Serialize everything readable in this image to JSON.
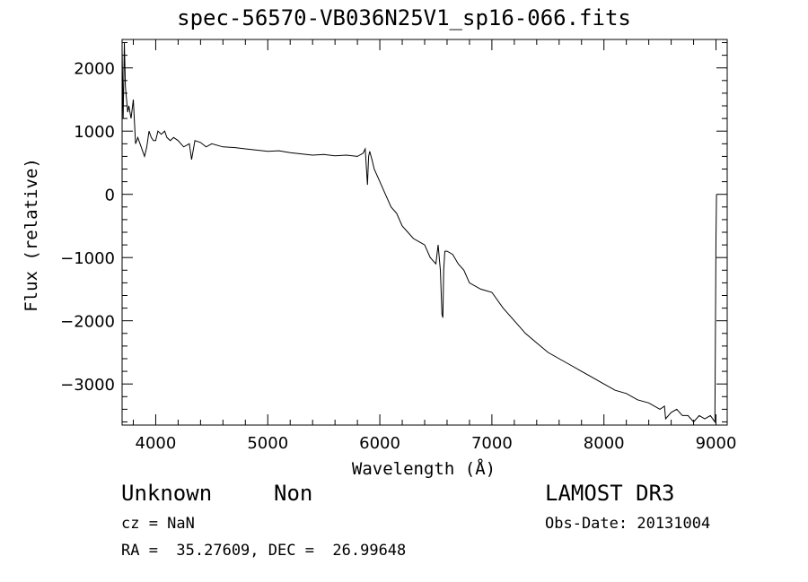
{
  "chart_data": {
    "type": "line",
    "title": "spec-56570-VB036N25V1_sp16-066.fits",
    "xlabel": "Wavelength (Å)",
    "ylabel": "Flux (relative)",
    "xlim": [
      3700,
      9100
    ],
    "ylim": [
      -3650,
      2450
    ],
    "xticks": [
      4000,
      5000,
      6000,
      7000,
      8000,
      9000
    ],
    "yticks": [
      -3000,
      -2000,
      -1000,
      0,
      1000,
      2000
    ],
    "x_minor_step": 200,
    "y_minor_step": 200,
    "grid": false,
    "line_color": "#000000",
    "series": [
      {
        "x": [
          3700,
          3710,
          3720,
          3730,
          3740,
          3750,
          3760,
          3780,
          3800,
          3820,
          3840,
          3860,
          3880,
          3900,
          3920,
          3940,
          3960,
          3980,
          4000,
          4020,
          4050,
          4080,
          4100,
          4130,
          4160,
          4200,
          4250,
          4300,
          4320,
          4350,
          4400,
          4450,
          4500,
          4600,
          4700,
          4800,
          4900,
          5000,
          5100,
          5200,
          5300,
          5400,
          5500,
          5600,
          5700,
          5800,
          5850,
          5870,
          5890,
          5900,
          5910,
          5930,
          5950,
          6000,
          6050,
          6100,
          6150,
          6200,
          6250,
          6300,
          6350,
          6400,
          6450,
          6500,
          6520,
          6540,
          6555,
          6563,
          6570,
          6580,
          6600,
          6650,
          6700,
          6750,
          6800,
          6900,
          7000,
          7100,
          7200,
          7300,
          7400,
          7500,
          7600,
          7700,
          7800,
          7900,
          8000,
          8100,
          8200,
          8300,
          8400,
          8500,
          8540,
          8550,
          8600,
          8650,
          8700,
          8750,
          8800,
          8850,
          8900,
          8950,
          8990,
          9000,
          9005
        ],
        "y": [
          2300,
          1200,
          2400,
          1700,
          1500,
          1300,
          1400,
          1200,
          1500,
          800,
          900,
          800,
          700,
          600,
          750,
          1000,
          900,
          850,
          850,
          1000,
          950,
          1000,
          900,
          850,
          900,
          850,
          750,
          800,
          550,
          850,
          820,
          750,
          800,
          750,
          740,
          720,
          700,
          680,
          690,
          660,
          640,
          620,
          630,
          610,
          620,
          600,
          650,
          720,
          150,
          600,
          680,
          550,
          400,
          200,
          0,
          -200,
          -300,
          -500,
          -600,
          -700,
          -750,
          -800,
          -1000,
          -1100,
          -800,
          -1200,
          -1900,
          -1950,
          -1200,
          -900,
          -900,
          -950,
          -1100,
          -1200,
          -1400,
          -1500,
          -1550,
          -1800,
          -2000,
          -2200,
          -2350,
          -2500,
          -2600,
          -2700,
          -2800,
          -2900,
          -3000,
          -3100,
          -3150,
          -3250,
          -3300,
          -3400,
          -3350,
          -3550,
          -3450,
          -3400,
          -3500,
          -3500,
          -3600,
          -3500,
          -3550,
          -3500,
          -3600,
          -700,
          0
        ]
      }
    ]
  },
  "footer": {
    "object_class": "Unknown",
    "object_subclass": "Non",
    "survey": "LAMOST DR3",
    "cz": "cz = NaN",
    "obs_date": "Obs-Date: 20131004",
    "radec": "RA =  35.27609, DEC =  26.99648"
  }
}
